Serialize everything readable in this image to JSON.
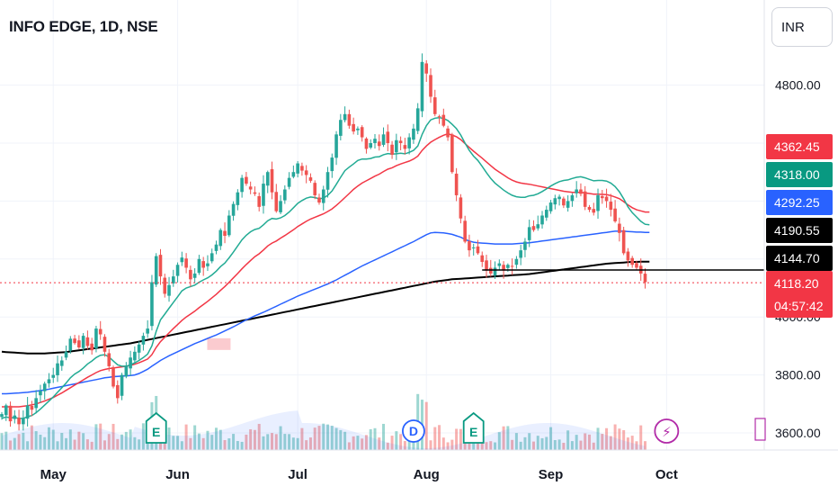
{
  "header": {
    "title": "INFO EDGE, 1D, NSE",
    "currency": "INR"
  },
  "colors": {
    "up": "#26a69a",
    "down": "#ef5350",
    "ema_green": "#22ab94",
    "ema_red": "#f23645",
    "ema_blue": "#2962ff",
    "sma_black": "#000000"
  },
  "chart_data": {
    "type": "candlestick",
    "title": "INFO EDGE, 1D, NSE",
    "currency": "INR",
    "ylim": [
      3560,
      4980
    ],
    "y_ticks": [
      {
        "value": 4800,
        "label": "4800.00"
      },
      {
        "value": 3800,
        "label": "3800.00"
      },
      {
        "value": 3600,
        "label": "3600.00"
      }
    ],
    "x_ticks": [
      {
        "index": 12,
        "label": "May"
      },
      {
        "index": 41,
        "label": "Jun"
      },
      {
        "index": 69,
        "label": "Jul"
      },
      {
        "index": 99,
        "label": "Aug"
      },
      {
        "index": 128,
        "label": "Sep"
      },
      {
        "index": 155,
        "label": "Oct"
      }
    ],
    "price_tags": [
      {
        "value": 4362.45,
        "label": "4362.45",
        "color": "#f23645"
      },
      {
        "value": 4318.0,
        "label": "4318.00",
        "color": "#089981"
      },
      {
        "value": 4292.25,
        "label": "4292.25",
        "color": "#2962ff"
      },
      {
        "value": 4190.55,
        "label": "4190.55",
        "color": "#000000"
      },
      {
        "value": 4144.7,
        "label": "4144.70",
        "color": "#000000"
      },
      {
        "value": 4118.2,
        "label": "4118.20",
        "color": "#f23645",
        "countdown": "04:57:42"
      }
    ],
    "markers": [
      {
        "index": 36,
        "letter": "E",
        "kind": "earnings"
      },
      {
        "index": 96,
        "letter": "D",
        "kind": "dividend"
      },
      {
        "index": 110,
        "letter": "E",
        "kind": "earnings"
      },
      {
        "index": 155,
        "letter": "⚡",
        "kind": "event"
      }
    ],
    "closes": [
      3665,
      3695,
      3640,
      3660,
      3630,
      3650,
      3695,
      3680,
      3720,
      3745,
      3770,
      3785,
      3800,
      3840,
      3850,
      3880,
      3925,
      3910,
      3895,
      3935,
      3900,
      3885,
      3960,
      3940,
      3880,
      3830,
      3760,
      3720,
      3800,
      3830,
      3860,
      3880,
      3905,
      3935,
      3960,
      4120,
      4210,
      4140,
      4080,
      4110,
      4140,
      4180,
      4205,
      4170,
      4130,
      4150,
      4200,
      4170,
      4185,
      4220,
      4250,
      4300,
      4280,
      4350,
      4390,
      4430,
      4480,
      4460,
      4440,
      4425,
      4380,
      4460,
      4500,
      4430,
      4365,
      4400,
      4440,
      4480,
      4500,
      4530,
      4505,
      4490,
      4470,
      4420,
      4395,
      4440,
      4500,
      4550,
      4630,
      4680,
      4700,
      4660,
      4640,
      4650,
      4620,
      4580,
      4600,
      4615,
      4590,
      4630,
      4600,
      4560,
      4610,
      4600,
      4580,
      4620,
      4650,
      4720,
      4880,
      4840,
      4760,
      4700,
      4690,
      4660,
      4620,
      4500,
      4420,
      4340,
      4260,
      4230,
      4240,
      4220,
      4190,
      4160,
      4150,
      4170,
      4185,
      4160,
      4180,
      4175,
      4200,
      4230,
      4260,
      4310,
      4300,
      4320,
      4350,
      4370,
      4395,
      4410,
      4415,
      4385,
      4400,
      4420,
      4440,
      4425,
      4380,
      4370,
      4360,
      4420,
      4410,
      4400,
      4370,
      4330,
      4290,
      4220,
      4195,
      4180,
      4170,
      4150,
      4120
    ],
    "sma_200": [
      3880,
      3879,
      3878,
      3877,
      3876,
      3875,
      3874,
      3874,
      3874,
      3874,
      3874,
      3875,
      3876,
      3877,
      3878,
      3879,
      3881,
      3883,
      3885,
      3887,
      3889,
      3891,
      3893,
      3895,
      3897,
      3899,
      3901,
      3903,
      3905,
      3907,
      3909,
      3912,
      3915,
      3918,
      3921,
      3924,
      3927,
      3930,
      3933,
      3936,
      3939,
      3942,
      3945,
      3948,
      3951,
      3954,
      3957,
      3960,
      3963,
      3966,
      3969,
      3972,
      3975,
      3978,
      3981,
      3984,
      3987,
      3990,
      3993,
      3996,
      3999,
      4002,
      4005,
      4008,
      4011,
      4014,
      4017,
      4020,
      4023,
      4026,
      4029,
      4032,
      4035,
      4038,
      4041,
      4044,
      4047,
      4050,
      4053,
      4056,
      4059,
      4062,
      4065,
      4068,
      4071,
      4074,
      4077,
      4080,
      4083,
      4086,
      4089,
      4092,
      4095,
      4098,
      4101,
      4104,
      4107,
      4110,
      4113,
      4116,
      4119,
      4122,
      4124,
      4126,
      4128,
      4130,
      4131,
      4132,
      4133,
      4134,
      4135,
      4136,
      4137,
      4138,
      4139,
      4140,
      4141,
      4142,
      4143,
      4144,
      4145,
      4146,
      4147,
      4148,
      4150,
      4152,
      4154,
      4156,
      4158,
      4160,
      4162,
      4164,
      4166,
      4168,
      4170,
      4172,
      4174,
      4176,
      4178,
      4180,
      4182,
      4184,
      4185,
      4186,
      4187,
      4188,
      4189,
      4190,
      4190,
      4191,
      4191,
      4191
    ],
    "ema_50": [
      3735,
      3735,
      3736,
      3737,
      3738,
      3739,
      3740,
      3742,
      3744,
      3746,
      3748,
      3751,
      3754,
      3757,
      3760,
      3763,
      3766,
      3769,
      3772,
      3775,
      3778,
      3781,
      3784,
      3787,
      3790,
      3792,
      3794,
      3795,
      3796,
      3797,
      3798,
      3800,
      3805,
      3812,
      3820,
      3830,
      3840,
      3850,
      3858,
      3866,
      3873,
      3880,
      3887,
      3894,
      3901,
      3908,
      3914,
      3920,
      3926,
      3932,
      3938,
      3945,
      3952,
      3959,
      3966,
      3974,
      3982,
      3990,
      3997,
      4004,
      4010,
      4016,
      4023,
      4030,
      4037,
      4044,
      4051,
      4058,
      4065,
      4072,
      4078,
      4084,
      4090,
      4096,
      4102,
      4108,
      4114,
      4121,
      4128,
      4136,
      4144,
      4152,
      4160,
      4168,
      4176,
      4183,
      4190,
      4197,
      4204,
      4211,
      4218,
      4225,
      4232,
      4239,
      4246,
      4253,
      4260,
      4268,
      4276,
      4284,
      4290,
      4292,
      4291,
      4290,
      4288,
      4285,
      4280,
      4275,
      4268,
      4262,
      4258,
      4256,
      4255,
      4254,
      4253,
      4252,
      4252,
      4252,
      4252,
      4252,
      4253,
      4254,
      4255,
      4256,
      4258,
      4260,
      4262,
      4264,
      4266,
      4268,
      4270,
      4272,
      4274,
      4276,
      4278,
      4280,
      4282,
      4284,
      4286,
      4288,
      4290,
      4292,
      4294,
      4296,
      4296,
      4296,
      4295,
      4294,
      4293,
      4293,
      4292,
      4292
    ],
    "ema_20": [
      3690,
      3690,
      3690,
      3690,
      3690,
      3692,
      3694,
      3697,
      3700,
      3705,
      3710,
      3716,
      3722,
      3730,
      3738,
      3747,
      3756,
      3765,
      3774,
      3783,
      3792,
      3800,
      3808,
      3815,
      3819,
      3822,
      3824,
      3826,
      3828,
      3830,
      3833,
      3837,
      3842,
      3848,
      3855,
      3870,
      3895,
      3915,
      3930,
      3945,
      3960,
      3974,
      3988,
      4000,
      4010,
      4020,
      4032,
      4043,
      4054,
      4066,
      4078,
      4092,
      4105,
      4120,
      4135,
      4150,
      4166,
      4181,
      4195,
      4208,
      4218,
      4231,
      4245,
      4255,
      4262,
      4272,
      4281,
      4291,
      4301,
      4312,
      4321,
      4330,
      4338,
      4344,
      4350,
      4356,
      4364,
      4373,
      4385,
      4398,
      4412,
      4426,
      4440,
      4452,
      4462,
      4470,
      4478,
      4486,
      4493,
      4502,
      4510,
      4515,
      4522,
      4528,
      4533,
      4538,
      4545,
      4555,
      4575,
      4590,
      4603,
      4612,
      4620,
      4627,
      4632,
      4628,
      4622,
      4612,
      4598,
      4585,
      4572,
      4560,
      4548,
      4535,
      4522,
      4510,
      4500,
      4490,
      4480,
      4472,
      4466,
      4462,
      4460,
      4458,
      4455,
      4452,
      4449,
      4446,
      4443,
      4440,
      4437,
      4434,
      4432,
      4430,
      4430,
      4430,
      4428,
      4426,
      4424,
      4424,
      4423,
      4422,
      4419,
      4414,
      4408,
      4398,
      4387,
      4377,
      4370,
      4366,
      4362,
      4362
    ],
    "ema_10": [
      3650,
      3655,
      3652,
      3653,
      3650,
      3650,
      3656,
      3660,
      3670,
      3682,
      3696,
      3710,
      3724,
      3740,
      3756,
      3772,
      3790,
      3803,
      3812,
      3824,
      3838,
      3848,
      3860,
      3868,
      3870,
      3862,
      3848,
      3835,
      3830,
      3830,
      3835,
      3842,
      3850,
      3860,
      3872,
      3900,
      3950,
      3990,
      4010,
      4030,
      4050,
      4070,
      4090,
      4100,
      4105,
      4110,
      4120,
      4128,
      4135,
      4145,
      4158,
      4174,
      4186,
      4204,
      4224,
      4245,
      4266,
      4282,
      4294,
      4302,
      4306,
      4318,
      4332,
      4340,
      4338,
      4342,
      4350,
      4362,
      4377,
      4392,
      4402,
      4410,
      4414,
      4412,
      4408,
      4410,
      4420,
      4435,
      4458,
      4482,
      4505,
      4517,
      4528,
      4540,
      4545,
      4545,
      4547,
      4552,
      4553,
      4560,
      4564,
      4562,
      4563,
      4565,
      4563,
      4568,
      4575,
      4590,
      4630,
      4660,
      4680,
      4686,
      4688,
      4685,
      4678,
      4665,
      4650,
      4628,
      4600,
      4575,
      4555,
      4540,
      4520,
      4498,
      4478,
      4462,
      4450,
      4438,
      4428,
      4420,
      4415,
      4413,
      4413,
      4418,
      4420,
      4425,
      4433,
      4442,
      4452,
      4460,
      4467,
      4471,
      4473,
      4478,
      4482,
      4484,
      4480,
      4475,
      4470,
      4471,
      4471,
      4469,
      4462,
      4450,
      4432,
      4408,
      4380,
      4360,
      4345,
      4330,
      4320,
      4318
    ]
  }
}
